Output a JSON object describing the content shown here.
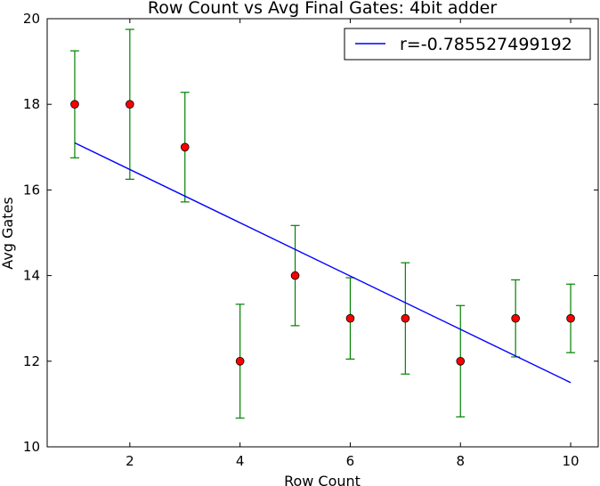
{
  "chart_data": {
    "type": "scatter",
    "title": "Row Count vs Avg Final Gates: 4bit adder",
    "xlabel": "Row Count",
    "ylabel": "Avg Gates",
    "xlim": [
      0.5,
      10.5
    ],
    "ylim": [
      10,
      20
    ],
    "xticks": [
      "2",
      "4",
      "6",
      "8",
      "10"
    ],
    "yticks": [
      "10",
      "12",
      "14",
      "16",
      "18",
      "20"
    ],
    "grid": false,
    "legend_position": "top-right",
    "series": [
      {
        "kind": "errorbar",
        "color": "#ff0000",
        "error_color": "#008000",
        "points": [
          {
            "x": 1,
            "y": 18,
            "lower": 16.75,
            "upper": 19.25
          },
          {
            "x": 2,
            "y": 18,
            "lower": 16.25,
            "upper": 19.75
          },
          {
            "x": 3,
            "y": 17,
            "lower": 15.72,
            "upper": 18.28
          },
          {
            "x": 4,
            "y": 12,
            "lower": 10.67,
            "upper": 13.33
          },
          {
            "x": 5,
            "y": 14,
            "lower": 12.83,
            "upper": 15.17
          },
          {
            "x": 6,
            "y": 13,
            "lower": 12.05,
            "upper": 13.95
          },
          {
            "x": 7,
            "y": 13,
            "lower": 11.7,
            "upper": 14.3
          },
          {
            "x": 8,
            "y": 12,
            "lower": 10.7,
            "upper": 13.3
          },
          {
            "x": 9,
            "y": 13,
            "lower": 12.1,
            "upper": 13.9
          },
          {
            "x": 10,
            "y": 13,
            "lower": 12.2,
            "upper": 13.8
          }
        ]
      },
      {
        "kind": "line",
        "name": "r=-0.785527499192",
        "color": "#0000ff",
        "x": [
          1,
          10
        ],
        "y": [
          17.1,
          11.5
        ]
      }
    ]
  }
}
